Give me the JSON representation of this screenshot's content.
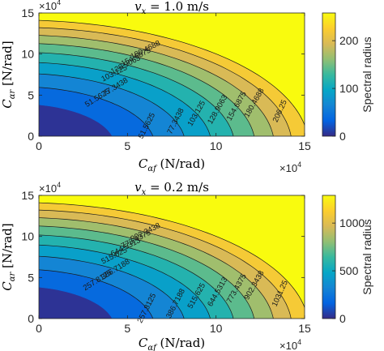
{
  "chart_data": [
    {
      "type": "contour",
      "title": "v_x = 1.0 m/s",
      "title_parts": [
        "v",
        "x",
        " = 1.0 m/s"
      ],
      "xlabel_parts": [
        "C",
        "αf",
        " (N/rad)"
      ],
      "ylabel_parts": [
        "C",
        "αr",
        " [N/rad]"
      ],
      "xlim": [
        0,
        150000
      ],
      "ylim": [
        0,
        150000
      ],
      "xticks": [
        "0",
        "5",
        "10",
        "15"
      ],
      "yticks": [
        "0",
        "5",
        "10",
        "15"
      ],
      "x_exponent_base": "×10",
      "x_exponent_power": "4",
      "y_exponent_base": "×10",
      "y_exponent_power": "4",
      "colorbar": {
        "label": "Spectral radius",
        "range": [
          0,
          258
        ],
        "ticks": [
          "0",
          "100",
          "200"
        ],
        "tick_values": [
          0,
          100,
          200
        ]
      },
      "contour_levels": [
        {
          "value": 51.5625,
          "label": "51.5625"
        },
        {
          "value": 77.3438,
          "label": "77.3438"
        },
        {
          "value": 103.125,
          "label": "103.125"
        },
        {
          "value": 128.9063,
          "label": "128.9063"
        },
        {
          "value": 154.6875,
          "label": "154.6875"
        },
        {
          "value": 180.4688,
          "label": "180.4688"
        },
        {
          "value": 206.25,
          "label": "206.25"
        },
        {
          "value": 232.0313,
          "label": "232.0313"
        }
      ]
    },
    {
      "type": "contour",
      "title": "v_x = 0.2 m/s",
      "title_parts": [
        "v",
        "x",
        " = 0.2 m/s"
      ],
      "xlabel_parts": [
        "C",
        "αf",
        " (N/rad)"
      ],
      "ylabel_parts": [
        "C",
        "αr",
        " [N/rad]"
      ],
      "xlim": [
        0,
        150000
      ],
      "ylim": [
        0,
        150000
      ],
      "xticks": [
        "0",
        "5",
        "10",
        "15"
      ],
      "yticks": [
        "0",
        "5",
        "10",
        "15"
      ],
      "x_exponent_base": "×10",
      "x_exponent_power": "4",
      "y_exponent_base": "×10",
      "y_exponent_power": "4",
      "colorbar": {
        "label": "Spectral radius",
        "range": [
          0,
          1290
        ],
        "ticks": [
          "0",
          "500",
          "1000"
        ],
        "tick_values": [
          0,
          500,
          1000
        ]
      },
      "contour_levels": [
        {
          "value": 257.8125,
          "label": "257.8125"
        },
        {
          "value": 386.7188,
          "label": "386.7188"
        },
        {
          "value": 515.625,
          "label": "515.625"
        },
        {
          "value": 644.5313,
          "label": "644.5313"
        },
        {
          "value": 773.4375,
          "label": "773.4375"
        },
        {
          "value": 902.3438,
          "label": "902.3438"
        },
        {
          "value": 1031.25,
          "label": "1031.25"
        },
        {
          "value": 1160.1563,
          "label": "1160.1563"
        }
      ]
    }
  ]
}
